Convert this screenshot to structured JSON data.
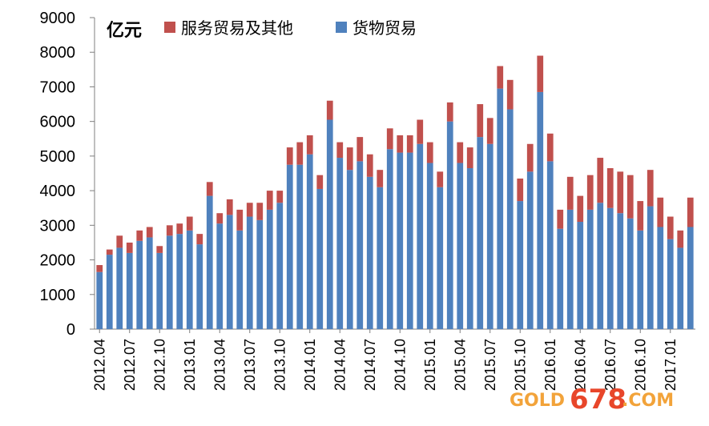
{
  "chart_data": {
    "type": "bar",
    "stacked": true,
    "unit_label": "亿元",
    "ylim": [
      0,
      9000
    ],
    "yticks": [
      0,
      1000,
      2000,
      3000,
      4000,
      5000,
      6000,
      7000,
      8000,
      9000
    ],
    "legend_position": "top-left",
    "grid": false,
    "xtick_labels": [
      "2012.04",
      "2012.07",
      "2012.10",
      "2013.01",
      "2013.04",
      "2013.07",
      "2013.10",
      "2014.01",
      "2014.04",
      "2014.07",
      "2014.10",
      "2015.01",
      "2015.04",
      "2015.07",
      "2015.10",
      "2016.01",
      "2016.04",
      "2016.07",
      "2016.10",
      "2017.01"
    ],
    "categories": [
      "2012.04",
      "2012.05",
      "2012.06",
      "2012.07",
      "2012.08",
      "2012.09",
      "2012.10",
      "2012.11",
      "2012.12",
      "2013.01",
      "2013.02",
      "2013.03",
      "2013.04",
      "2013.05",
      "2013.06",
      "2013.07",
      "2013.08",
      "2013.09",
      "2013.10",
      "2013.11",
      "2013.12",
      "2014.01",
      "2014.02",
      "2014.03",
      "2014.04",
      "2014.05",
      "2014.06",
      "2014.07",
      "2014.08",
      "2014.09",
      "2014.10",
      "2014.11",
      "2014.12",
      "2015.01",
      "2015.02",
      "2015.03",
      "2015.04",
      "2015.05",
      "2015.06",
      "2015.07",
      "2015.08",
      "2015.09",
      "2015.10",
      "2015.11",
      "2015.12",
      "2016.01",
      "2016.02",
      "2016.03",
      "2016.04",
      "2016.05",
      "2016.06",
      "2016.07",
      "2016.08",
      "2016.09",
      "2016.10",
      "2016.11",
      "2016.12",
      "2017.01",
      "2017.02",
      "2017.03"
    ],
    "series": [
      {
        "name": "货物贸易",
        "color": "#4f81bd",
        "values": [
          1650,
          2150,
          2350,
          2200,
          2550,
          2650,
          2200,
          2700,
          2750,
          2850,
          2450,
          3850,
          3050,
          3300,
          2850,
          3250,
          3150,
          3450,
          3650,
          4750,
          4750,
          5050,
          4050,
          6050,
          4950,
          4600,
          4850,
          4400,
          4100,
          5200,
          5100,
          5100,
          5350,
          4800,
          4100,
          6000,
          4800,
          4650,
          5550,
          5350,
          6950,
          6350,
          3700,
          4550,
          6850,
          4850,
          2900,
          3450,
          3100,
          3450,
          3650,
          3500,
          3350,
          3200,
          2850,
          3550,
          2950,
          2600,
          2350,
          2950
        ]
      },
      {
        "name": "服务贸易及其他",
        "color": "#c0504d",
        "values": [
          200,
          150,
          350,
          300,
          300,
          300,
          200,
          300,
          300,
          400,
          300,
          400,
          300,
          450,
          600,
          400,
          500,
          550,
          350,
          500,
          650,
          550,
          400,
          550,
          450,
          650,
          700,
          650,
          500,
          600,
          500,
          500,
          700,
          600,
          450,
          550,
          600,
          600,
          950,
          750,
          650,
          850,
          650,
          800,
          1050,
          800,
          550,
          950,
          750,
          1000,
          1300,
          1150,
          1200,
          1250,
          850,
          1050,
          850,
          650,
          500,
          850
        ]
      }
    ]
  },
  "watermark": {
    "part1": "GOLD",
    "part2": "678",
    "part3": ".COM"
  }
}
